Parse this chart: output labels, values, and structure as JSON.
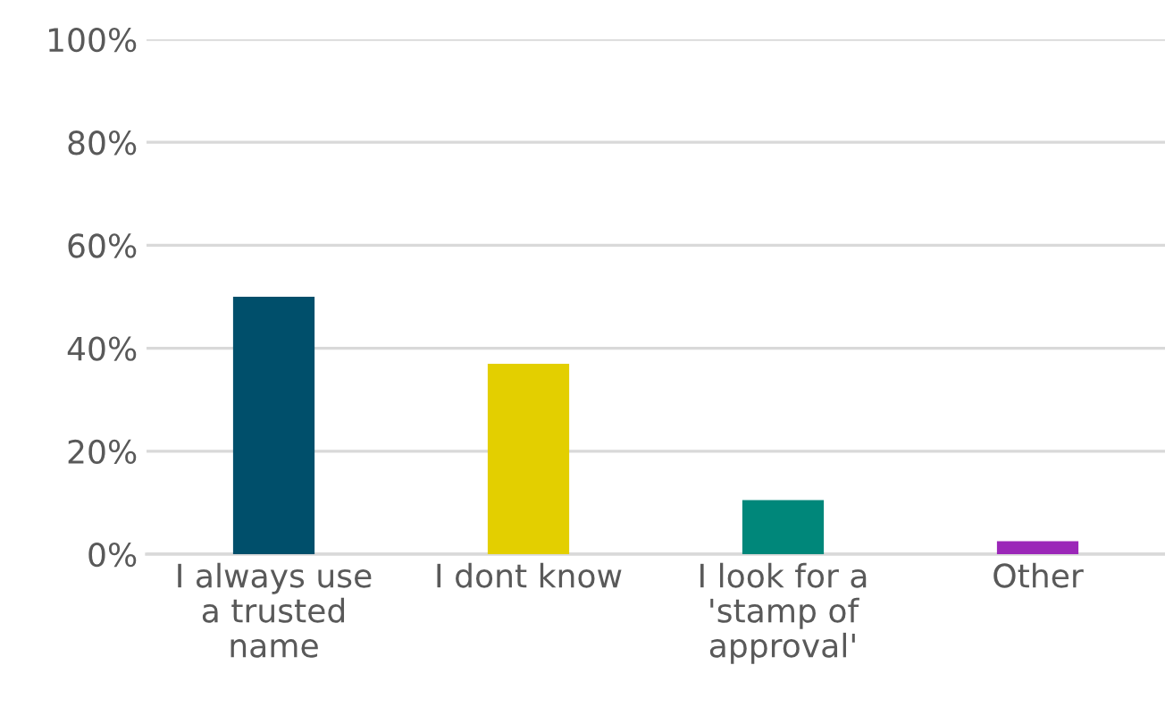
{
  "chart_data": {
    "type": "bar",
    "categories": [
      "I always use\na trusted\nname",
      "I dont know",
      "I look for a\n'stamp of\napproval'",
      "Other"
    ],
    "values": [
      50,
      37,
      10.5,
      2.5
    ],
    "colors": [
      "#004f6b",
      "#e3cf00",
      "#00877a",
      "#9b27b8"
    ],
    "ylim": [
      0,
      100
    ],
    "yticks": [
      {
        "value": 0,
        "label": "0%"
      },
      {
        "value": 20,
        "label": "20%"
      },
      {
        "value": 40,
        "label": "40%"
      },
      {
        "value": 60,
        "label": "60%"
      },
      {
        "value": 80,
        "label": "80%"
      },
      {
        "value": 100,
        "label": "100%"
      }
    ],
    "grid": "y",
    "legend": false
  }
}
